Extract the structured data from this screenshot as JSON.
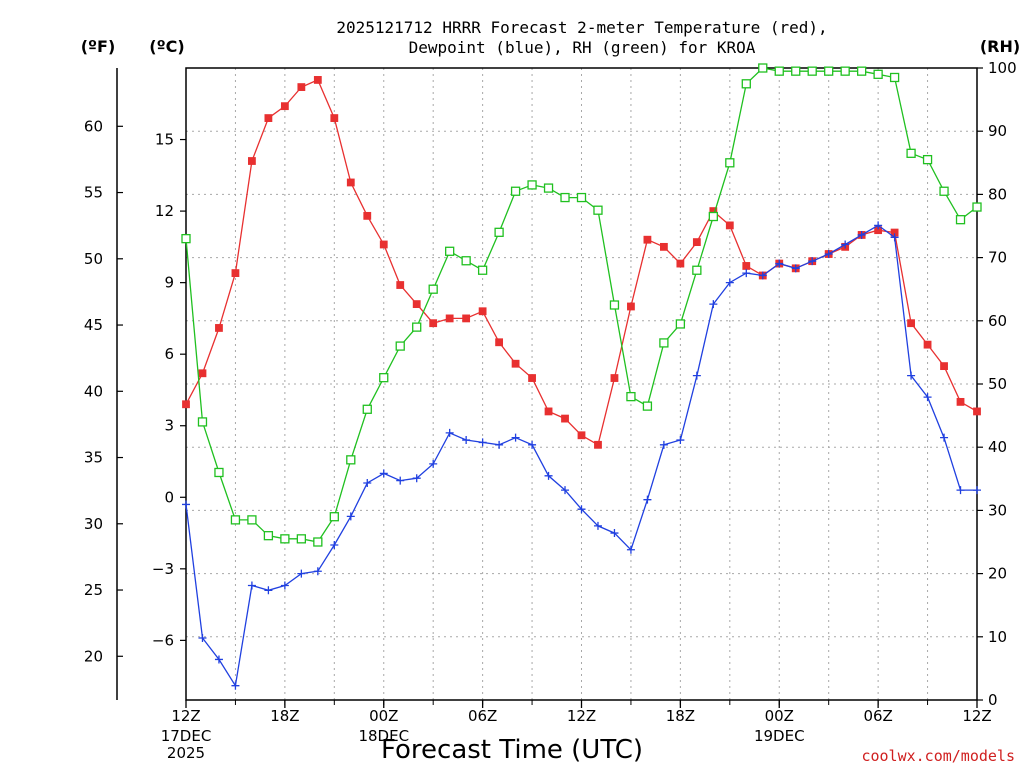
{
  "chart_data": {
    "type": "line",
    "title_line1": "2025121712 HRRR Forecast 2-meter Temperature (red),",
    "title_line2": "Dewpoint (blue), RH (green) for KROA",
    "xlabel": "Forecast Time (UTC)",
    "unit_f": "(ºF)",
    "unit_c": "(ºC)",
    "unit_rh": "(RH)",
    "credit": "coolwx.com/models",
    "hours": [
      0,
      1,
      2,
      3,
      4,
      5,
      6,
      7,
      8,
      9,
      10,
      11,
      12,
      13,
      14,
      15,
      16,
      17,
      18,
      19,
      20,
      21,
      22,
      23,
      24,
      25,
      26,
      27,
      28,
      29,
      30,
      31,
      32,
      33,
      34,
      35,
      36,
      37,
      38,
      39,
      40,
      41,
      42,
      43,
      44,
      45,
      46,
      47,
      48
    ],
    "ylim_c": [
      -8.5,
      18
    ],
    "ylim_rh": [
      0,
      100
    ],
    "c_ticks": [
      -6,
      -3,
      0,
      3,
      6,
      9,
      12,
      15
    ],
    "f_ticks": [
      20,
      25,
      30,
      35,
      40,
      45,
      50,
      55,
      60
    ],
    "rh_ticks": [
      0,
      10,
      20,
      30,
      40,
      50,
      60,
      70,
      80,
      90,
      100
    ],
    "x_ticks": [
      {
        "hour": 0,
        "label": "12Z",
        "sub1": "17DEC",
        "sub2": "2025"
      },
      {
        "hour": 6,
        "label": "18Z",
        "sub1": "",
        "sub2": ""
      },
      {
        "hour": 12,
        "label": "00Z",
        "sub1": "18DEC",
        "sub2": ""
      },
      {
        "hour": 18,
        "label": "06Z",
        "sub1": "",
        "sub2": ""
      },
      {
        "hour": 24,
        "label": "12Z",
        "sub1": "",
        "sub2": ""
      },
      {
        "hour": 30,
        "label": "18Z",
        "sub1": "",
        "sub2": ""
      },
      {
        "hour": 36,
        "label": "00Z",
        "sub1": "19DEC",
        "sub2": ""
      },
      {
        "hour": 42,
        "label": "06Z",
        "sub1": "",
        "sub2": ""
      },
      {
        "hour": 48,
        "label": "12Z",
        "sub1": "",
        "sub2": ""
      }
    ],
    "series": [
      {
        "color": "#e83030",
        "marker": "filled-square",
        "axis": "c",
        "values": [
          3.9,
          5.2,
          7.1,
          9.4,
          14.1,
          15.9,
          16.4,
          17.2,
          17.5,
          15.9,
          13.2,
          11.8,
          10.6,
          8.9,
          8.1,
          7.3,
          7.5,
          7.5,
          7.8,
          6.5,
          5.6,
          5.0,
          3.6,
          3.3,
          2.6,
          2.2,
          5.0,
          8.0,
          10.8,
          10.5,
          9.8,
          10.7,
          12.0,
          11.4,
          9.7,
          9.3,
          9.8,
          9.6,
          9.9,
          10.2,
          10.5,
          11.0,
          11.2,
          11.1,
          7.3,
          6.4,
          5.5,
          4.0,
          3.6
        ]
      },
      {
        "color": "#2040e0",
        "marker": "plus",
        "axis": "c",
        "values": [
          -0.3,
          -5.9,
          -6.8,
          -7.9,
          -3.7,
          -3.9,
          -3.7,
          -3.2,
          -3.1,
          -2.0,
          -0.8,
          0.6,
          1.0,
          0.7,
          0.8,
          1.4,
          2.7,
          2.4,
          2.3,
          2.2,
          2.5,
          2.2,
          0.9,
          0.3,
          -0.5,
          -1.2,
          -1.5,
          -2.2,
          -0.1,
          2.2,
          2.4,
          5.1,
          8.1,
          9.0,
          9.4,
          9.3,
          9.8,
          9.6,
          9.9,
          10.2,
          10.6,
          11.0,
          11.4,
          10.9,
          5.1,
          4.2,
          2.5,
          0.3,
          0.3
        ]
      },
      {
        "color": "#20c020",
        "marker": "open-square",
        "axis": "rh",
        "values": [
          73,
          44,
          36,
          28.5,
          28.5,
          26,
          25.5,
          25.5,
          25,
          29,
          38,
          46,
          51,
          56,
          59,
          65,
          71,
          69.5,
          68,
          74,
          80.5,
          81.5,
          81,
          79.5,
          79.5,
          77.5,
          62.5,
          48,
          46.5,
          56.5,
          59.5,
          68,
          76.5,
          85,
          97.5,
          100,
          99.5,
          99.5,
          99.5,
          99.5,
          99.5,
          99.5,
          99,
          98.5,
          86.5,
          85.5,
          80.5,
          76,
          78
        ]
      }
    ]
  }
}
